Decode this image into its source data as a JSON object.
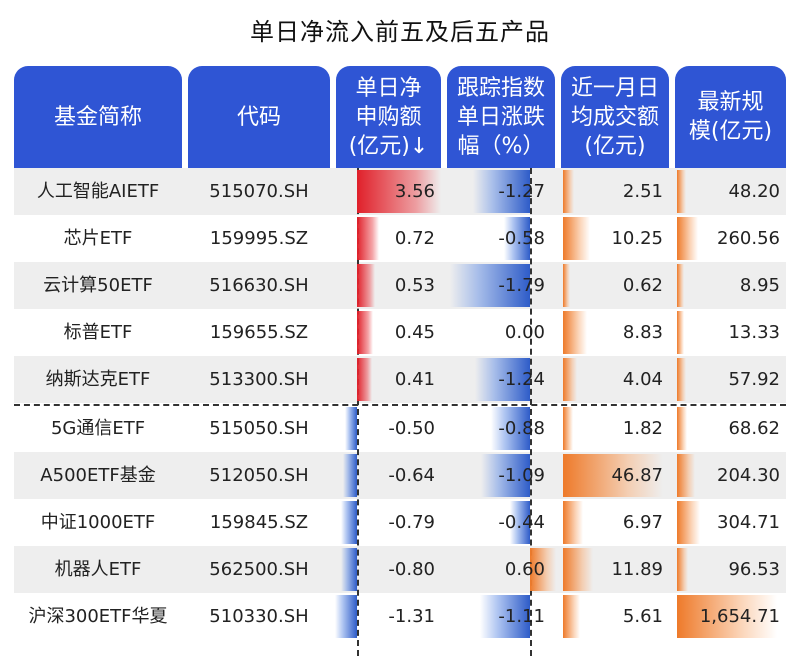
{
  "title": "单日净流入前五及后五产品",
  "headers": {
    "name": "基金简称",
    "code": "代码",
    "net": [
      "单日净",
      "申购额",
      "(亿元)↓"
    ],
    "idx": [
      "跟踪指数",
      "单日涨跌",
      "幅（%）"
    ],
    "vol": [
      "近一月日",
      "均成交额",
      "(亿元)"
    ],
    "size": [
      "最新规",
      "模(亿元)"
    ]
  },
  "colors": {
    "header_bg": "#2f55d4",
    "row_alt": "#eeeeee",
    "positive_bar": "#e0202a",
    "negative_bar": "#2e5cc8",
    "volume_bar": "#ee7a2a"
  },
  "rows": [
    {
      "name": "人工智能AIETF",
      "code": "515070.SH",
      "net": "3.56",
      "idx": "-1.27",
      "vol": "2.51",
      "size": "48.20"
    },
    {
      "name": "芯片ETF",
      "code": "159995.SZ",
      "net": "0.72",
      "idx": "-0.58",
      "vol": "10.25",
      "size": "260.56"
    },
    {
      "name": "云计算50ETF",
      "code": "516630.SH",
      "net": "0.53",
      "idx": "-1.79",
      "vol": "0.62",
      "size": "8.95"
    },
    {
      "name": "标普ETF",
      "code": "159655.SZ",
      "net": "0.45",
      "idx": "0.00",
      "vol": "8.83",
      "size": "13.33"
    },
    {
      "name": "纳斯达克ETF",
      "code": "513300.SH",
      "net": "0.41",
      "idx": "-1.24",
      "vol": "4.04",
      "size": "57.92"
    },
    {
      "name": "5G通信ETF",
      "code": "515050.SH",
      "net": "-0.50",
      "idx": "-0.88",
      "vol": "1.82",
      "size": "68.62"
    },
    {
      "name": "A500ETF基金",
      "code": "512050.SH",
      "net": "-0.64",
      "idx": "-1.09",
      "vol": "46.87",
      "size": "204.30"
    },
    {
      "name": "中证1000ETF",
      "code": "159845.SZ",
      "net": "-0.79",
      "idx": "-0.44",
      "vol": "6.97",
      "size": "304.71"
    },
    {
      "name": "机器人ETF",
      "code": "562500.SH",
      "net": "-0.80",
      "idx": "0.60",
      "vol": "11.89",
      "size": "96.53"
    },
    {
      "name": "沪深300ETF华夏",
      "code": "510330.SH",
      "net": "-1.31",
      "idx": "-1.11",
      "vol": "5.61",
      "size": "1,654.71"
    }
  ]
}
